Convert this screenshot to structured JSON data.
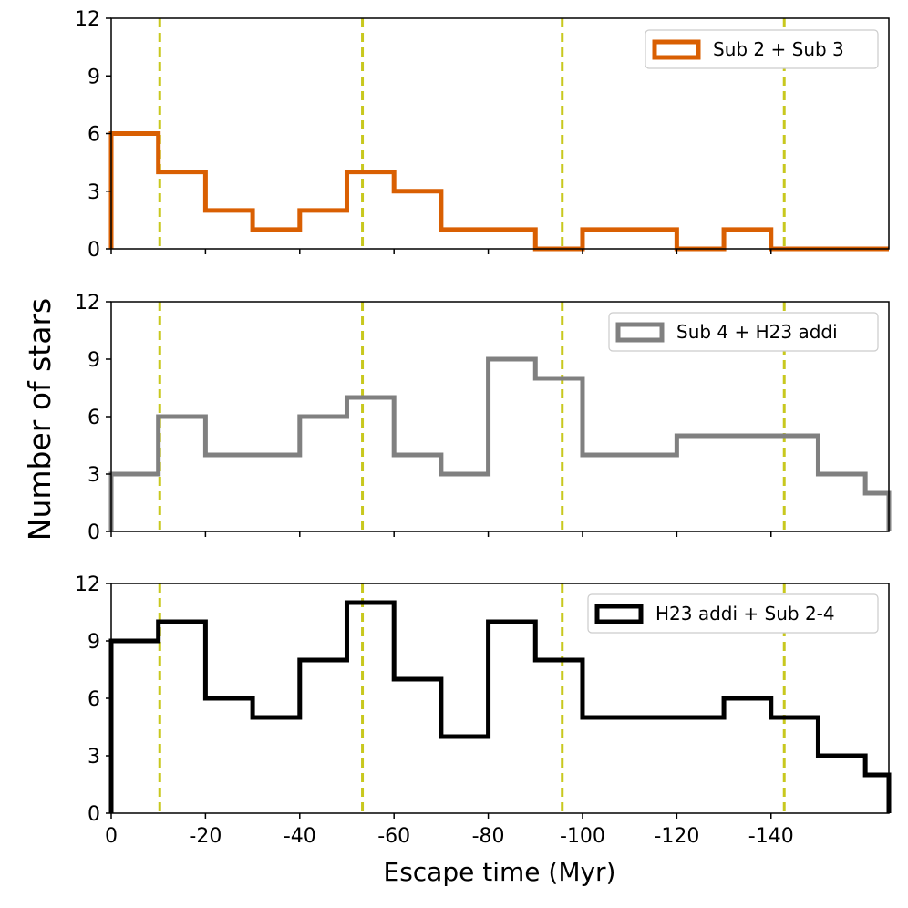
{
  "chart_data": {
    "type": "histogram-step",
    "ylabel": "Number of stars",
    "xlabel": "Escape time (Myr)",
    "xlim": [
      0,
      -165
    ],
    "ylim": [
      0,
      12
    ],
    "xticks": [
      0,
      -20,
      -40,
      -60,
      -80,
      -100,
      -120,
      -140
    ],
    "xtick_labels": [
      "0",
      "-20",
      "-40",
      "-60",
      "-80",
      "-100",
      "-120",
      "-140"
    ],
    "yticks": [
      0,
      3,
      6,
      9,
      12
    ],
    "ytick_labels": [
      "0",
      "3",
      "6",
      "9",
      "12"
    ],
    "bin_edges": [
      0,
      -10,
      -20,
      -30,
      -40,
      -50,
      -60,
      -70,
      -80,
      -90,
      -100,
      -110,
      -120,
      -130,
      -140,
      -150,
      -160,
      -165
    ],
    "vertical_lines": [
      -10.3,
      -53.3,
      -95.7,
      -142.8
    ],
    "vertical_line_color": "#c8c81e",
    "panels": [
      {
        "legend": "Sub 2 + Sub 3",
        "color": "#d95f02",
        "values": [
          6,
          4,
          2,
          1,
          2,
          4,
          3,
          1,
          1,
          0,
          1,
          1,
          0,
          1,
          0,
          0,
          0
        ]
      },
      {
        "legend": "Sub 4 + H23 addi",
        "color": "#808080",
        "values": [
          3,
          6,
          4,
          4,
          6,
          7,
          4,
          3,
          9,
          8,
          4,
          4,
          5,
          5,
          5,
          3,
          2
        ]
      },
      {
        "legend": "H23 addi + Sub 2-4",
        "color": "#000000",
        "values": [
          9,
          10,
          6,
          5,
          8,
          11,
          7,
          4,
          10,
          8,
          5,
          5,
          5,
          6,
          5,
          3,
          2
        ]
      }
    ]
  }
}
